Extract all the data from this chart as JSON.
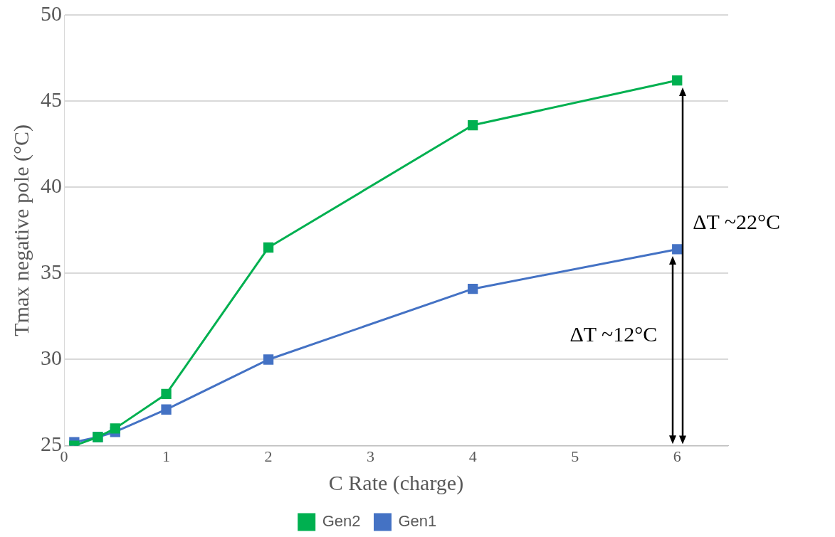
{
  "chart_data": {
    "type": "line",
    "xlabel": "C Rate (charge)",
    "ylabel": "Tmax negative pole (°C)",
    "xlim": [
      0,
      6.5
    ],
    "xticks": [
      0,
      1,
      2,
      3,
      4,
      5,
      6
    ],
    "ylim": [
      25,
      50
    ],
    "yticks": [
      25,
      30,
      35,
      40,
      45,
      50
    ],
    "x": [
      0.1,
      0.33,
      0.5,
      1,
      2,
      4,
      6
    ],
    "series": [
      {
        "name": "Gen1",
        "color": "#4472c4",
        "values": [
          25.2,
          25.5,
          25.8,
          27.1,
          30.0,
          34.1,
          36.4
        ]
      },
      {
        "name": "Gen2",
        "color": "#00b050",
        "values": [
          25.0,
          25.5,
          26.0,
          28.0,
          36.5,
          43.6,
          46.2
        ]
      }
    ],
    "annotations": [
      "ΔT ~12°C",
      "ΔT ~22°C"
    ],
    "grid": "y",
    "legend": "bottom",
    "marker": "square",
    "line_style": "solid"
  }
}
